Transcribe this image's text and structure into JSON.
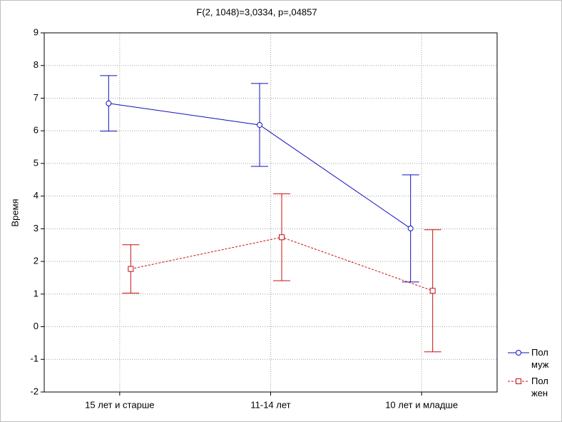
{
  "chart_data": {
    "type": "line",
    "title": "F(2, 1048)=3,0334, p=,04857",
    "y_label": "Время",
    "categories": [
      "15 лет и старше",
      "11-14 лет",
      "10 лет и младше"
    ],
    "series": [
      {
        "name": "Пол муж",
        "color": "#1010c0",
        "marker": "circle",
        "dashed": false,
        "values": [
          6.84,
          6.18,
          3.01
        ],
        "errors": [
          0.85,
          1.27,
          1.64
        ]
      },
      {
        "name": "Пол жен",
        "color": "#c81010",
        "marker": "square",
        "dashed": true,
        "values": [
          1.77,
          2.74,
          1.1
        ],
        "errors": [
          0.74,
          1.33,
          1.87
        ]
      }
    ],
    "ylim": [
      -2,
      9
    ],
    "yticks": [
      -2,
      -1,
      0,
      1,
      2,
      3,
      4,
      5,
      6,
      7,
      8,
      9
    ],
    "grid": true,
    "legend": "bottom-right"
  }
}
